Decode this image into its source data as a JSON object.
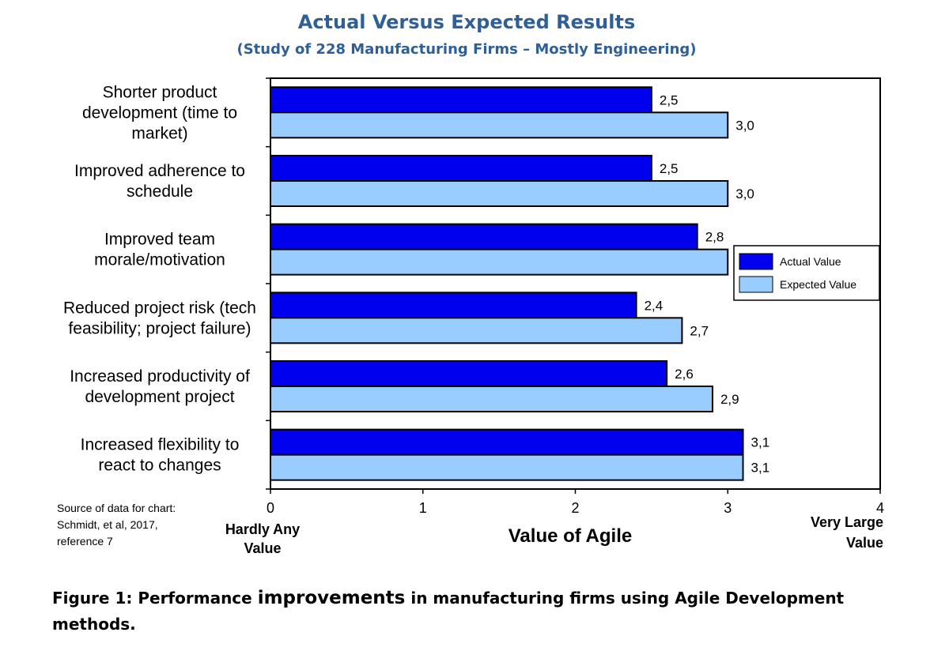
{
  "chart_data": {
    "type": "bar",
    "orientation": "horizontal",
    "title": "Actual Versus Expected Results",
    "subtitle": "(Study of 228 Manufacturing Firms – Mostly Engineering)",
    "categories": [
      [
        "Shorter product",
        "development (time to",
        "market)"
      ],
      [
        "Improved adherence to",
        "schedule"
      ],
      [
        "Improved team",
        "morale/motivation"
      ],
      [
        "Reduced project risk (tech",
        "feasibility; project failure)"
      ],
      [
        "Increased productivity of",
        "development project"
      ],
      [
        "Increased flexibility to",
        "react to changes"
      ]
    ],
    "series": [
      {
        "name": "Actual Value",
        "color": "#0000ee",
        "values": [
          2.5,
          2.5,
          2.8,
          2.4,
          2.6,
          3.1
        ],
        "labels": [
          "2,5",
          "2,5",
          "2,8",
          "2,4",
          "2,6",
          "3,1"
        ]
      },
      {
        "name": "Expected Value",
        "color": "#99ccff",
        "values": [
          3.0,
          3.0,
          3.0,
          2.7,
          2.9,
          3.1
        ],
        "labels": [
          "3,0",
          "3,0",
          "3,0",
          "2,7",
          "2,9",
          "3,1"
        ]
      }
    ],
    "xlim": [
      0,
      4
    ],
    "xticks": [
      "0",
      "1",
      "2",
      "3",
      "4"
    ],
    "xlabel": "Value of Agile",
    "x_end_labels": {
      "left": [
        "Hardly Any",
        "Value"
      ],
      "right": [
        "Very Large",
        "Value"
      ]
    },
    "legend_position": "right",
    "grid": false
  },
  "source_note": [
    "Source of data for chart:",
    "Schmidt, et al,  2017,",
    "reference 7"
  ],
  "caption": {
    "part1": "Figure 1: Performance ",
    "part2": "improvements",
    "part3": " in manufacturing firms using Agile Development methods."
  }
}
